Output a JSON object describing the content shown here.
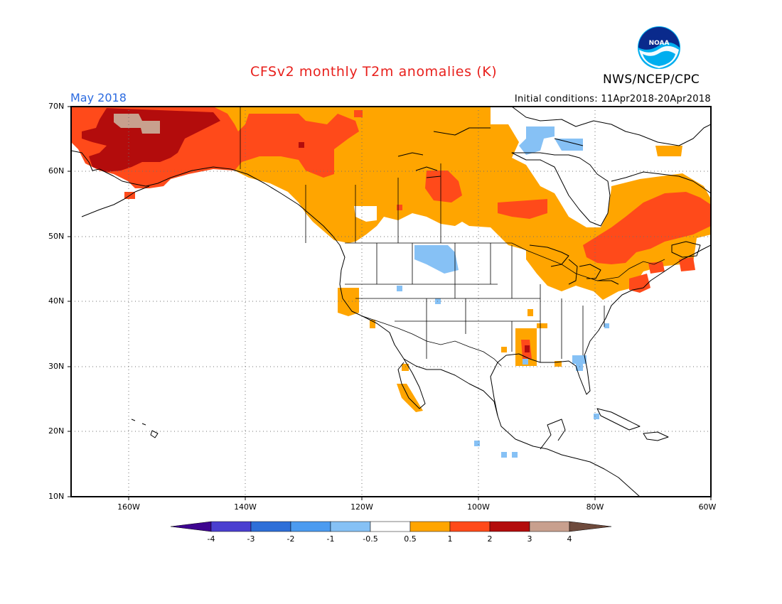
{
  "header": {
    "title": "CFSv2 monthly T2m anomalies (K)",
    "month": "May 2018",
    "initial_conditions": "Initial conditions: 11Apr2018-20Apr2018",
    "agency": "NWS/NCEP/CPC",
    "logo_text": "NOAA"
  },
  "axes": {
    "lat_labels": [
      "70N",
      "60N",
      "50N",
      "40N",
      "30N",
      "20N",
      "10N"
    ],
    "lon_labels": [
      "160W",
      "140W",
      "120W",
      "100W",
      "80W",
      "60W"
    ]
  },
  "colorbar": {
    "labels": [
      "-4",
      "-3",
      "-2",
      "-1",
      "-0.5",
      "0.5",
      "1",
      "2",
      "3",
      "4"
    ],
    "colors": [
      "#3e0590",
      "#4a3fd0",
      "#2e6fd8",
      "#4b9bf0",
      "#86c1f5",
      "#ffffff",
      "#ffa500",
      "#ff4a1a",
      "#b30c0c",
      "#c8a08e",
      "#6e4a3c"
    ]
  }
}
